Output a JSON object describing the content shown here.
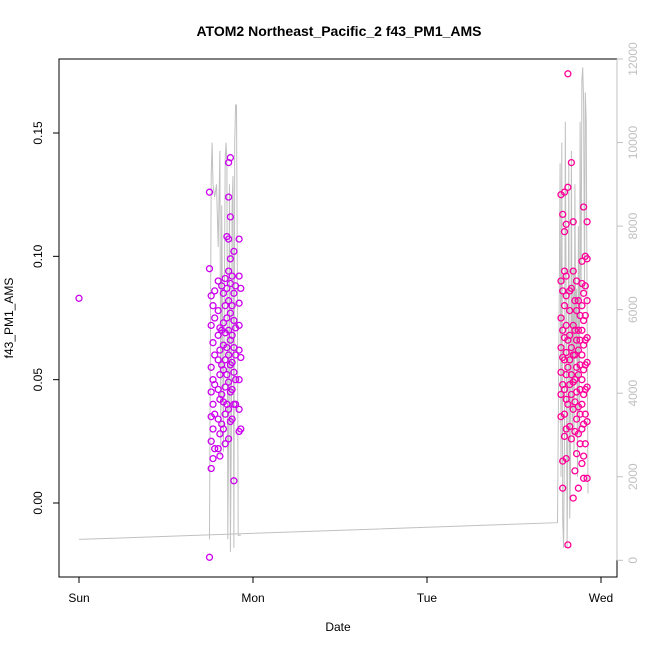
{
  "chart_data": {
    "type": "scatter",
    "title": "ATOM2 Northeast_Pacific_2 f43_PM1_AMS",
    "xlabel": "Date",
    "ylabel": "f43_PM1_AMS",
    "x_ticks": [
      "Sun",
      "Mon",
      "Tue",
      "Wed"
    ],
    "xlim_days": [
      -0.03,
      3.03
    ],
    "ylim": [
      -0.03,
      0.18
    ],
    "y_ticks": [
      0.0,
      0.05,
      0.1,
      0.15
    ],
    "y_tick_labels": [
      "0.00",
      "0.05",
      "0.10",
      "0.15"
    ],
    "y2_ticks": [
      0,
      2000,
      4000,
      6000,
      8000,
      10000,
      12000
    ],
    "y2_tick_labels": [
      "0",
      "2000",
      "4000",
      "6000",
      "8000",
      "10000",
      "12000"
    ],
    "y2lim": [
      -400,
      12000
    ],
    "grid": false,
    "legend": "none",
    "colors": {
      "points_flight1": "#cc00ee",
      "points_flight2": "#ff0099",
      "altitude_line": "#c0c0c0",
      "frame": "#000000",
      "right_axis": "#c0c0c0"
    },
    "series": [
      {
        "marker": "open-circle",
        "color": "#cc00ee",
        "points": [
          [
            0.0,
            0.083
          ],
          [
            0.75,
            -0.022
          ],
          [
            0.75,
            0.126
          ],
          [
            0.75,
            0.095
          ],
          [
            0.76,
            0.084
          ],
          [
            0.76,
            0.072
          ],
          [
            0.76,
            0.055
          ],
          [
            0.76,
            0.045
          ],
          [
            0.76,
            0.035
          ],
          [
            0.76,
            0.025
          ],
          [
            0.76,
            0.014
          ],
          [
            0.77,
            0.08
          ],
          [
            0.77,
            0.065
          ],
          [
            0.77,
            0.05
          ],
          [
            0.77,
            0.04
          ],
          [
            0.77,
            0.03
          ],
          [
            0.77,
            0.018
          ],
          [
            0.78,
            0.086
          ],
          [
            0.78,
            0.075
          ],
          [
            0.78,
            0.06
          ],
          [
            0.78,
            0.048
          ],
          [
            0.78,
            0.036
          ],
          [
            0.78,
            0.022
          ],
          [
            0.8,
            0.09
          ],
          [
            0.8,
            0.078
          ],
          [
            0.8,
            0.068
          ],
          [
            0.8,
            0.058
          ],
          [
            0.8,
            0.046
          ],
          [
            0.8,
            0.034
          ],
          [
            0.8,
            0.022
          ],
          [
            0.81,
            0.071
          ],
          [
            0.81,
            0.062
          ],
          [
            0.81,
            0.052
          ],
          [
            0.81,
            0.042
          ],
          [
            0.81,
            0.028
          ],
          [
            0.81,
            0.019
          ],
          [
            0.82,
            0.088
          ],
          [
            0.82,
            0.07
          ],
          [
            0.82,
            0.056
          ],
          [
            0.82,
            0.044
          ],
          [
            0.82,
            0.032
          ],
          [
            0.83,
            0.085
          ],
          [
            0.83,
            0.073
          ],
          [
            0.83,
            0.064
          ],
          [
            0.83,
            0.054
          ],
          [
            0.83,
            0.041
          ],
          [
            0.83,
            0.03
          ],
          [
            0.84,
            0.091
          ],
          [
            0.84,
            0.08
          ],
          [
            0.84,
            0.069
          ],
          [
            0.84,
            0.058
          ],
          [
            0.84,
            0.047
          ],
          [
            0.84,
            0.036
          ],
          [
            0.84,
            0.024
          ],
          [
            0.85,
            0.108
          ],
          [
            0.85,
            0.087
          ],
          [
            0.85,
            0.075
          ],
          [
            0.85,
            0.063
          ],
          [
            0.85,
            0.052
          ],
          [
            0.85,
            0.04
          ],
          [
            0.86,
            0.138
          ],
          [
            0.86,
            0.124
          ],
          [
            0.86,
            0.107
          ],
          [
            0.86,
            0.094
          ],
          [
            0.86,
            0.082
          ],
          [
            0.86,
            0.07
          ],
          [
            0.86,
            0.06
          ],
          [
            0.86,
            0.049
          ],
          [
            0.86,
            0.038
          ],
          [
            0.86,
            0.026
          ],
          [
            0.87,
            0.14
          ],
          [
            0.87,
            0.116
          ],
          [
            0.87,
            0.099
          ],
          [
            0.87,
            0.089
          ],
          [
            0.87,
            0.077
          ],
          [
            0.87,
            0.066
          ],
          [
            0.87,
            0.056
          ],
          [
            0.87,
            0.045
          ],
          [
            0.87,
            0.033
          ],
          [
            0.88,
            0.092
          ],
          [
            0.88,
            0.08
          ],
          [
            0.88,
            0.068
          ],
          [
            0.88,
            0.057
          ],
          [
            0.88,
            0.046
          ],
          [
            0.88,
            0.034
          ],
          [
            0.89,
            0.102
          ],
          [
            0.89,
            0.085
          ],
          [
            0.89,
            0.074
          ],
          [
            0.89,
            0.063
          ],
          [
            0.89,
            0.053
          ],
          [
            0.89,
            0.04
          ],
          [
            0.89,
            0.009
          ],
          [
            0.9,
            0.088
          ],
          [
            0.9,
            0.071
          ],
          [
            0.9,
            0.06
          ],
          [
            0.9,
            0.05
          ],
          [
            0.9,
            0.04
          ],
          [
            0.92,
            0.107
          ],
          [
            0.92,
            0.092
          ],
          [
            0.92,
            0.081
          ],
          [
            0.92,
            0.072
          ],
          [
            0.92,
            0.062
          ],
          [
            0.92,
            0.05
          ],
          [
            0.92,
            0.038
          ],
          [
            0.92,
            0.029
          ],
          [
            0.93,
            0.087
          ],
          [
            0.93,
            0.059
          ],
          [
            0.93,
            0.03
          ]
        ]
      },
      {
        "marker": "open-circle",
        "color": "#ff0099",
        "points": [
          [
            2.77,
            0.125
          ],
          [
            2.77,
            0.09
          ],
          [
            2.77,
            0.075
          ],
          [
            2.77,
            0.063
          ],
          [
            2.77,
            0.053
          ],
          [
            2.77,
            0.044
          ],
          [
            2.77,
            0.035
          ],
          [
            2.78,
            0.117
          ],
          [
            2.78,
            0.086
          ],
          [
            2.78,
            0.07
          ],
          [
            2.78,
            0.059
          ],
          [
            2.78,
            0.048
          ],
          [
            2.78,
            0.017
          ],
          [
            2.78,
            0.006
          ],
          [
            2.79,
            0.126
          ],
          [
            2.79,
            0.11
          ],
          [
            2.79,
            0.094
          ],
          [
            2.79,
            0.08
          ],
          [
            2.79,
            0.067
          ],
          [
            2.79,
            0.058
          ],
          [
            2.79,
            0.046
          ],
          [
            2.79,
            0.036
          ],
          [
            2.79,
            0.027
          ],
          [
            2.8,
            0.113
          ],
          [
            2.8,
            0.092
          ],
          [
            2.8,
            0.084
          ],
          [
            2.8,
            0.072
          ],
          [
            2.8,
            0.061
          ],
          [
            2.8,
            0.052
          ],
          [
            2.8,
            0.042
          ],
          [
            2.8,
            0.03
          ],
          [
            2.8,
            0.018
          ],
          [
            2.81,
            0.174
          ],
          [
            2.81,
            0.128
          ],
          [
            2.81,
            0.066
          ],
          [
            2.81,
            0.055
          ],
          [
            2.81,
            0.04
          ],
          [
            2.81,
            -0.017
          ],
          [
            2.82,
            0.086
          ],
          [
            2.82,
            0.078
          ],
          [
            2.82,
            0.068
          ],
          [
            2.82,
            0.058
          ],
          [
            2.82,
            0.048
          ],
          [
            2.82,
            0.031
          ],
          [
            2.83,
            0.138
          ],
          [
            2.83,
            0.087
          ],
          [
            2.83,
            0.063
          ],
          [
            2.83,
            0.052
          ],
          [
            2.83,
            0.044
          ],
          [
            2.83,
            0.026
          ],
          [
            2.84,
            0.114
          ],
          [
            2.84,
            0.094
          ],
          [
            2.84,
            0.072
          ],
          [
            2.84,
            0.06
          ],
          [
            2.84,
            0.049
          ],
          [
            2.84,
            0.038
          ],
          [
            2.84,
            0.002
          ],
          [
            2.85,
            0.082
          ],
          [
            2.85,
            0.07
          ],
          [
            2.85,
            0.06
          ],
          [
            2.85,
            0.05
          ],
          [
            2.85,
            0.041
          ],
          [
            2.85,
            0.029
          ],
          [
            2.85,
            0.013
          ],
          [
            2.86,
            0.09
          ],
          [
            2.86,
            0.078
          ],
          [
            2.86,
            0.066
          ],
          [
            2.86,
            0.055
          ],
          [
            2.86,
            0.045
          ],
          [
            2.86,
            0.034
          ],
          [
            2.86,
            0.02
          ],
          [
            2.87,
            0.082
          ],
          [
            2.87,
            0.07
          ],
          [
            2.87,
            0.062
          ],
          [
            2.87,
            0.052
          ],
          [
            2.87,
            0.039
          ],
          [
            2.87,
            0.028
          ],
          [
            2.87,
            0.006
          ],
          [
            2.88,
            0.076
          ],
          [
            2.88,
            0.066
          ],
          [
            2.88,
            0.056
          ],
          [
            2.88,
            0.046
          ],
          [
            2.88,
            0.036
          ],
          [
            2.88,
            0.024
          ],
          [
            2.89,
            0.098
          ],
          [
            2.89,
            0.089
          ],
          [
            2.89,
            0.08
          ],
          [
            2.89,
            0.07
          ],
          [
            2.89,
            0.06
          ],
          [
            2.89,
            0.05
          ],
          [
            2.89,
            0.04
          ],
          [
            2.89,
            0.03
          ],
          [
            2.89,
            0.016
          ],
          [
            2.9,
            0.12
          ],
          [
            2.9,
            0.085
          ],
          [
            2.9,
            0.074
          ],
          [
            2.9,
            0.064
          ],
          [
            2.9,
            0.054
          ],
          [
            2.9,
            0.044
          ],
          [
            2.9,
            0.032
          ],
          [
            2.9,
            0.019
          ],
          [
            2.9,
            0.01
          ],
          [
            2.91,
            0.1
          ],
          [
            2.91,
            0.088
          ],
          [
            2.91,
            0.076
          ],
          [
            2.91,
            0.066
          ],
          [
            2.91,
            0.056
          ],
          [
            2.91,
            0.046
          ],
          [
            2.91,
            0.036
          ],
          [
            2.91,
            0.024
          ],
          [
            2.92,
            0.114
          ],
          [
            2.92,
            0.099
          ],
          [
            2.92,
            0.082
          ],
          [
            2.92,
            0.067
          ],
          [
            2.92,
            0.057
          ],
          [
            2.92,
            0.047
          ],
          [
            2.92,
            0.033
          ],
          [
            2.92,
            0.01
          ]
        ]
      }
    ],
    "altitude_series": {
      "axis": "right",
      "line": "solid",
      "color": "#c0c0c0",
      "points": [
        [
          0.0,
          500
        ],
        [
          2.75,
          900
        ],
        [
          2.76,
          6200
        ],
        [
          2.765,
          9500
        ],
        [
          2.77,
          2000
        ],
        [
          2.775,
          10000
        ],
        [
          2.78,
          1000
        ],
        [
          2.785,
          300
        ],
        [
          2.79,
          3000
        ],
        [
          2.795,
          10500
        ],
        [
          2.8,
          6000
        ],
        [
          2.805,
          300
        ],
        [
          2.81,
          3000
        ],
        [
          2.815,
          9500
        ],
        [
          2.82,
          1000
        ],
        [
          2.825,
          2000
        ],
        [
          2.83,
          9800
        ],
        [
          2.835,
          3000
        ],
        [
          2.84,
          7000
        ],
        [
          2.845,
          2500
        ],
        [
          2.85,
          9000
        ],
        [
          2.855,
          5000
        ],
        [
          2.86,
          6500
        ],
        [
          2.865,
          2000
        ],
        [
          2.87,
          8000
        ],
        [
          2.875,
          3000
        ],
        [
          2.88,
          10500
        ],
        [
          2.885,
          6000
        ],
        [
          2.89,
          11500
        ],
        [
          2.895,
          11800
        ],
        [
          2.9,
          11000
        ],
        [
          2.905,
          6500
        ],
        [
          2.91,
          11200
        ],
        [
          2.915,
          10500
        ],
        [
          2.92,
          6000
        ],
        [
          2.925,
          1600
        ]
      ],
      "segments": [
        [
          [
            0.75,
            500
          ],
          [
            0.752,
            2200
          ],
          [
            0.76,
            9200
          ],
          [
            0.765,
            10000
          ],
          [
            0.77,
            9000
          ],
          [
            0.78,
            8700
          ],
          [
            0.79,
            9000
          ],
          [
            0.8,
            7500
          ],
          [
            0.81,
            9800
          ],
          [
            0.815,
            2500
          ],
          [
            0.82,
            8500
          ],
          [
            0.83,
            2600
          ],
          [
            0.84,
            9600
          ],
          [
            0.845,
            10000
          ],
          [
            0.85,
            9500
          ],
          [
            0.855,
            500
          ],
          [
            0.86,
            3000
          ],
          [
            0.865,
            9000
          ],
          [
            0.87,
            200
          ],
          [
            0.875,
            3000
          ],
          [
            0.88,
            8500
          ],
          [
            0.885,
            9200
          ],
          [
            0.89,
            300
          ],
          [
            0.895,
            10000
          ],
          [
            0.9,
            10900
          ],
          [
            0.905,
            10900
          ],
          [
            0.91,
            7000
          ],
          [
            0.915,
            600
          ],
          [
            0.93,
            600
          ]
        ]
      ]
    }
  }
}
